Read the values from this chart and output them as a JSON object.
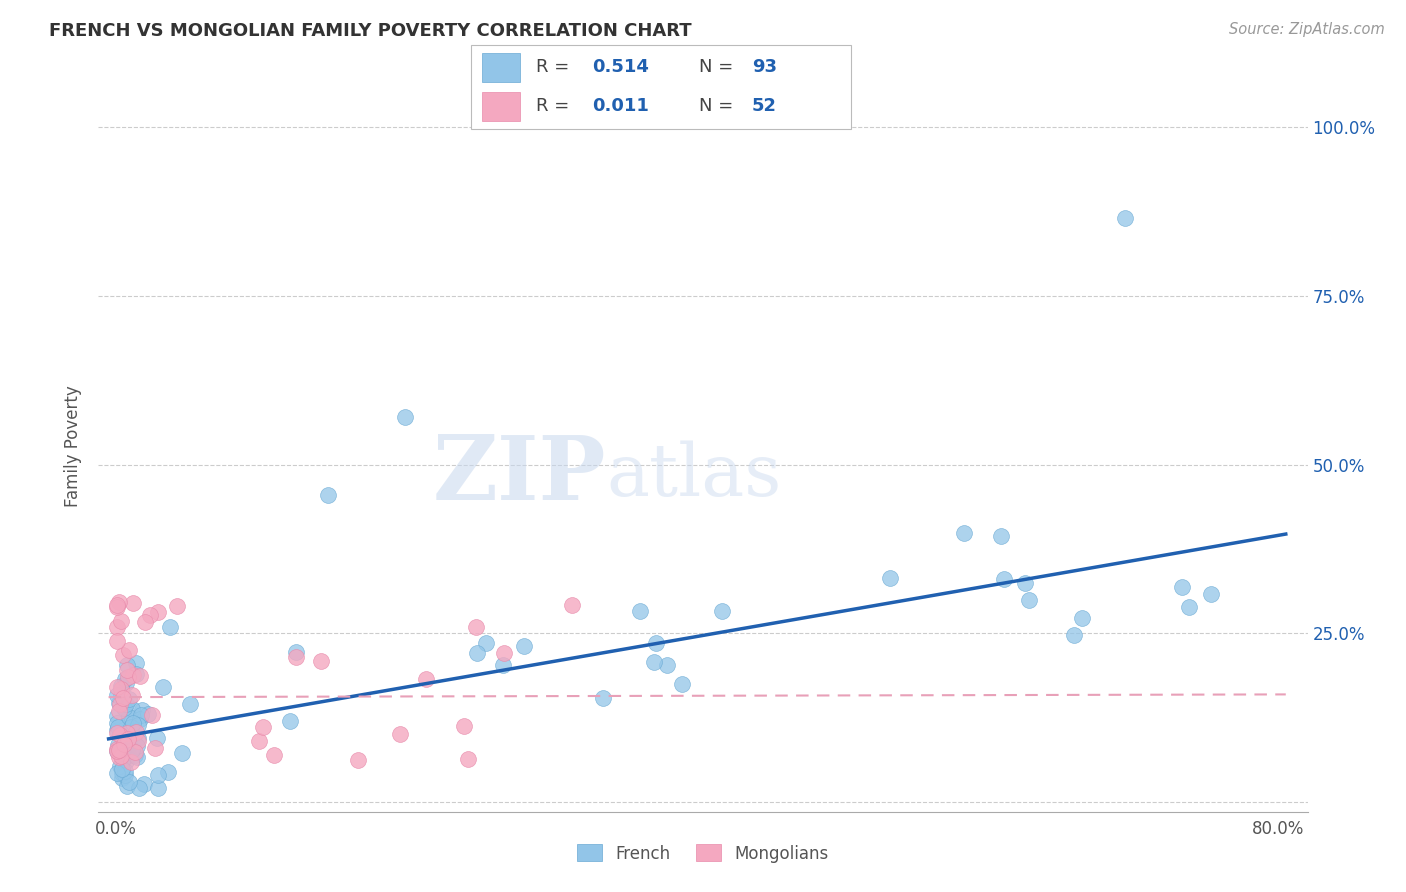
{
  "title": "FRENCH VS MONGOLIAN FAMILY POVERTY CORRELATION CHART",
  "source_text": "Source: ZipAtlas.com",
  "ylabel": "Family Poverty",
  "french_color": "#92C5E8",
  "french_edge_color": "#6AAAD4",
  "mongolian_color": "#F4A8C0",
  "mongolian_edge_color": "#E88AAA",
  "french_line_color": "#2060B0",
  "mongolian_line_color": "#E8A0B8",
  "french_R": 0.514,
  "french_N": 93,
  "mongolian_R": 0.011,
  "mongolian_N": 52,
  "watermark_zip": "ZIP",
  "watermark_atlas": "atlas",
  "legend_label_french": "French",
  "legend_label_mongolian": "Mongolians",
  "ytick_labels": [
    "",
    "25.0%",
    "50.0%",
    "75.0%",
    "100.0%"
  ],
  "ytick_vals": [
    0.0,
    0.25,
    0.5,
    0.75,
    1.0
  ],
  "legend_text_color": "#2060B0",
  "legend_r_color": "#333333"
}
